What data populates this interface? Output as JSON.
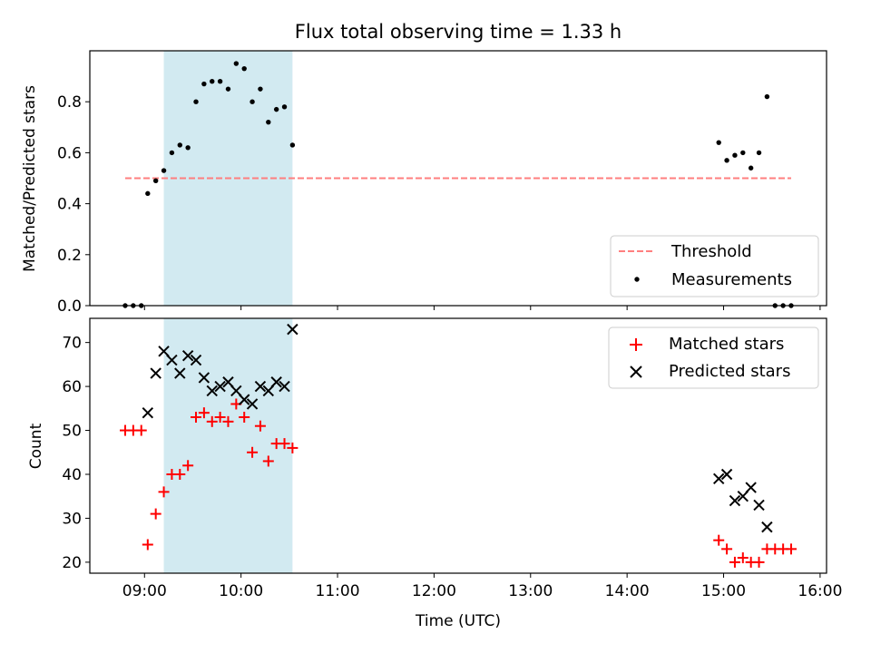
{
  "figure": {
    "title": "Flux total observing time = 1.33 h",
    "colors": {
      "threshold": "#ff7f7f",
      "measurement": "#000000",
      "matched": "#ff0000",
      "predicted": "#000000",
      "shade": "#add8e6"
    }
  },
  "chart_data": [
    {
      "type": "scatter",
      "title": "Flux total observing time = 1.33 h",
      "xlabel": "",
      "ylabel": "Matched/Predicted stars",
      "xlim": [
        "08:26",
        "16:04"
      ],
      "ylim": [
        0,
        1.0
      ],
      "yticks": [
        "0.0",
        "0.2",
        "0.4",
        "0.6",
        "0.8"
      ],
      "grid": false,
      "legend_position": "lower right",
      "shaded_span": [
        "09:12",
        "10:32"
      ],
      "series": [
        {
          "name": "Threshold",
          "style": "dashed-line",
          "x": [
            "08:48",
            "15:42"
          ],
          "y": [
            0.5,
            0.5
          ]
        },
        {
          "name": "Measurements",
          "style": "dot",
          "x": [
            "08:48",
            "08:53",
            "08:58",
            "09:02",
            "09:07",
            "09:12",
            "09:17",
            "09:22",
            "09:27",
            "09:32",
            "09:37",
            "09:42",
            "09:47",
            "09:52",
            "09:57",
            "10:02",
            "10:07",
            "10:12",
            "10:17",
            "10:22",
            "10:27",
            "10:32",
            "14:57",
            "15:02",
            "15:07",
            "15:12",
            "15:17",
            "15:22",
            "15:27",
            "15:32",
            "15:37",
            "15:42"
          ],
          "y": [
            0.0,
            0.0,
            0.0,
            0.44,
            0.49,
            0.53,
            0.6,
            0.63,
            0.62,
            0.8,
            0.87,
            0.88,
            0.88,
            0.85,
            0.95,
            0.93,
            0.8,
            0.85,
            0.72,
            0.77,
            0.78,
            0.63,
            0.64,
            0.57,
            0.59,
            0.6,
            0.54,
            0.6,
            0.82,
            0.0,
            0.0,
            0.0
          ]
        }
      ]
    },
    {
      "type": "scatter",
      "title": "",
      "xlabel": "Time (UTC)",
      "ylabel": "Count",
      "xlim": [
        "08:26",
        "16:04"
      ],
      "ylim": [
        17.5,
        75.5
      ],
      "xticks": [
        "09:00",
        "10:00",
        "11:00",
        "12:00",
        "13:00",
        "14:00",
        "15:00",
        "16:00"
      ],
      "yticks": [
        "20",
        "30",
        "40",
        "50",
        "60",
        "70"
      ],
      "grid": false,
      "legend_position": "upper right",
      "shaded_span": [
        "09:12",
        "10:32"
      ],
      "series": [
        {
          "name": "Matched stars",
          "marker": "+",
          "x": [
            "08:48",
            "08:53",
            "08:58",
            "09:02",
            "09:07",
            "09:12",
            "09:17",
            "09:22",
            "09:27",
            "09:32",
            "09:37",
            "09:42",
            "09:47",
            "09:52",
            "09:57",
            "10:02",
            "10:07",
            "10:12",
            "10:17",
            "10:22",
            "10:27",
            "10:32",
            "14:57",
            "15:02",
            "15:07",
            "15:12",
            "15:17",
            "15:22",
            "15:27",
            "15:32",
            "15:37",
            "15:42"
          ],
          "y": [
            50,
            50,
            50,
            24,
            31,
            36,
            40,
            40,
            42,
            53,
            54,
            52,
            53,
            52,
            56,
            53,
            45,
            51,
            43,
            47,
            47,
            46,
            25,
            23,
            20,
            21,
            20,
            20,
            23,
            23,
            23,
            23
          ]
        },
        {
          "name": "Predicted stars",
          "marker": "x",
          "x": [
            "09:02",
            "09:07",
            "09:12",
            "09:17",
            "09:22",
            "09:27",
            "09:32",
            "09:37",
            "09:42",
            "09:47",
            "09:52",
            "09:57",
            "10:02",
            "10:07",
            "10:12",
            "10:17",
            "10:22",
            "10:27",
            "10:32",
            "14:57",
            "15:02",
            "15:07",
            "15:12",
            "15:17",
            "15:22",
            "15:27"
          ],
          "y": [
            54,
            63,
            68,
            66,
            63,
            67,
            66,
            62,
            59,
            60,
            61,
            59,
            57,
            56,
            60,
            59,
            61,
            60,
            73,
            39,
            40,
            34,
            35,
            37,
            33,
            28
          ]
        }
      ]
    }
  ]
}
